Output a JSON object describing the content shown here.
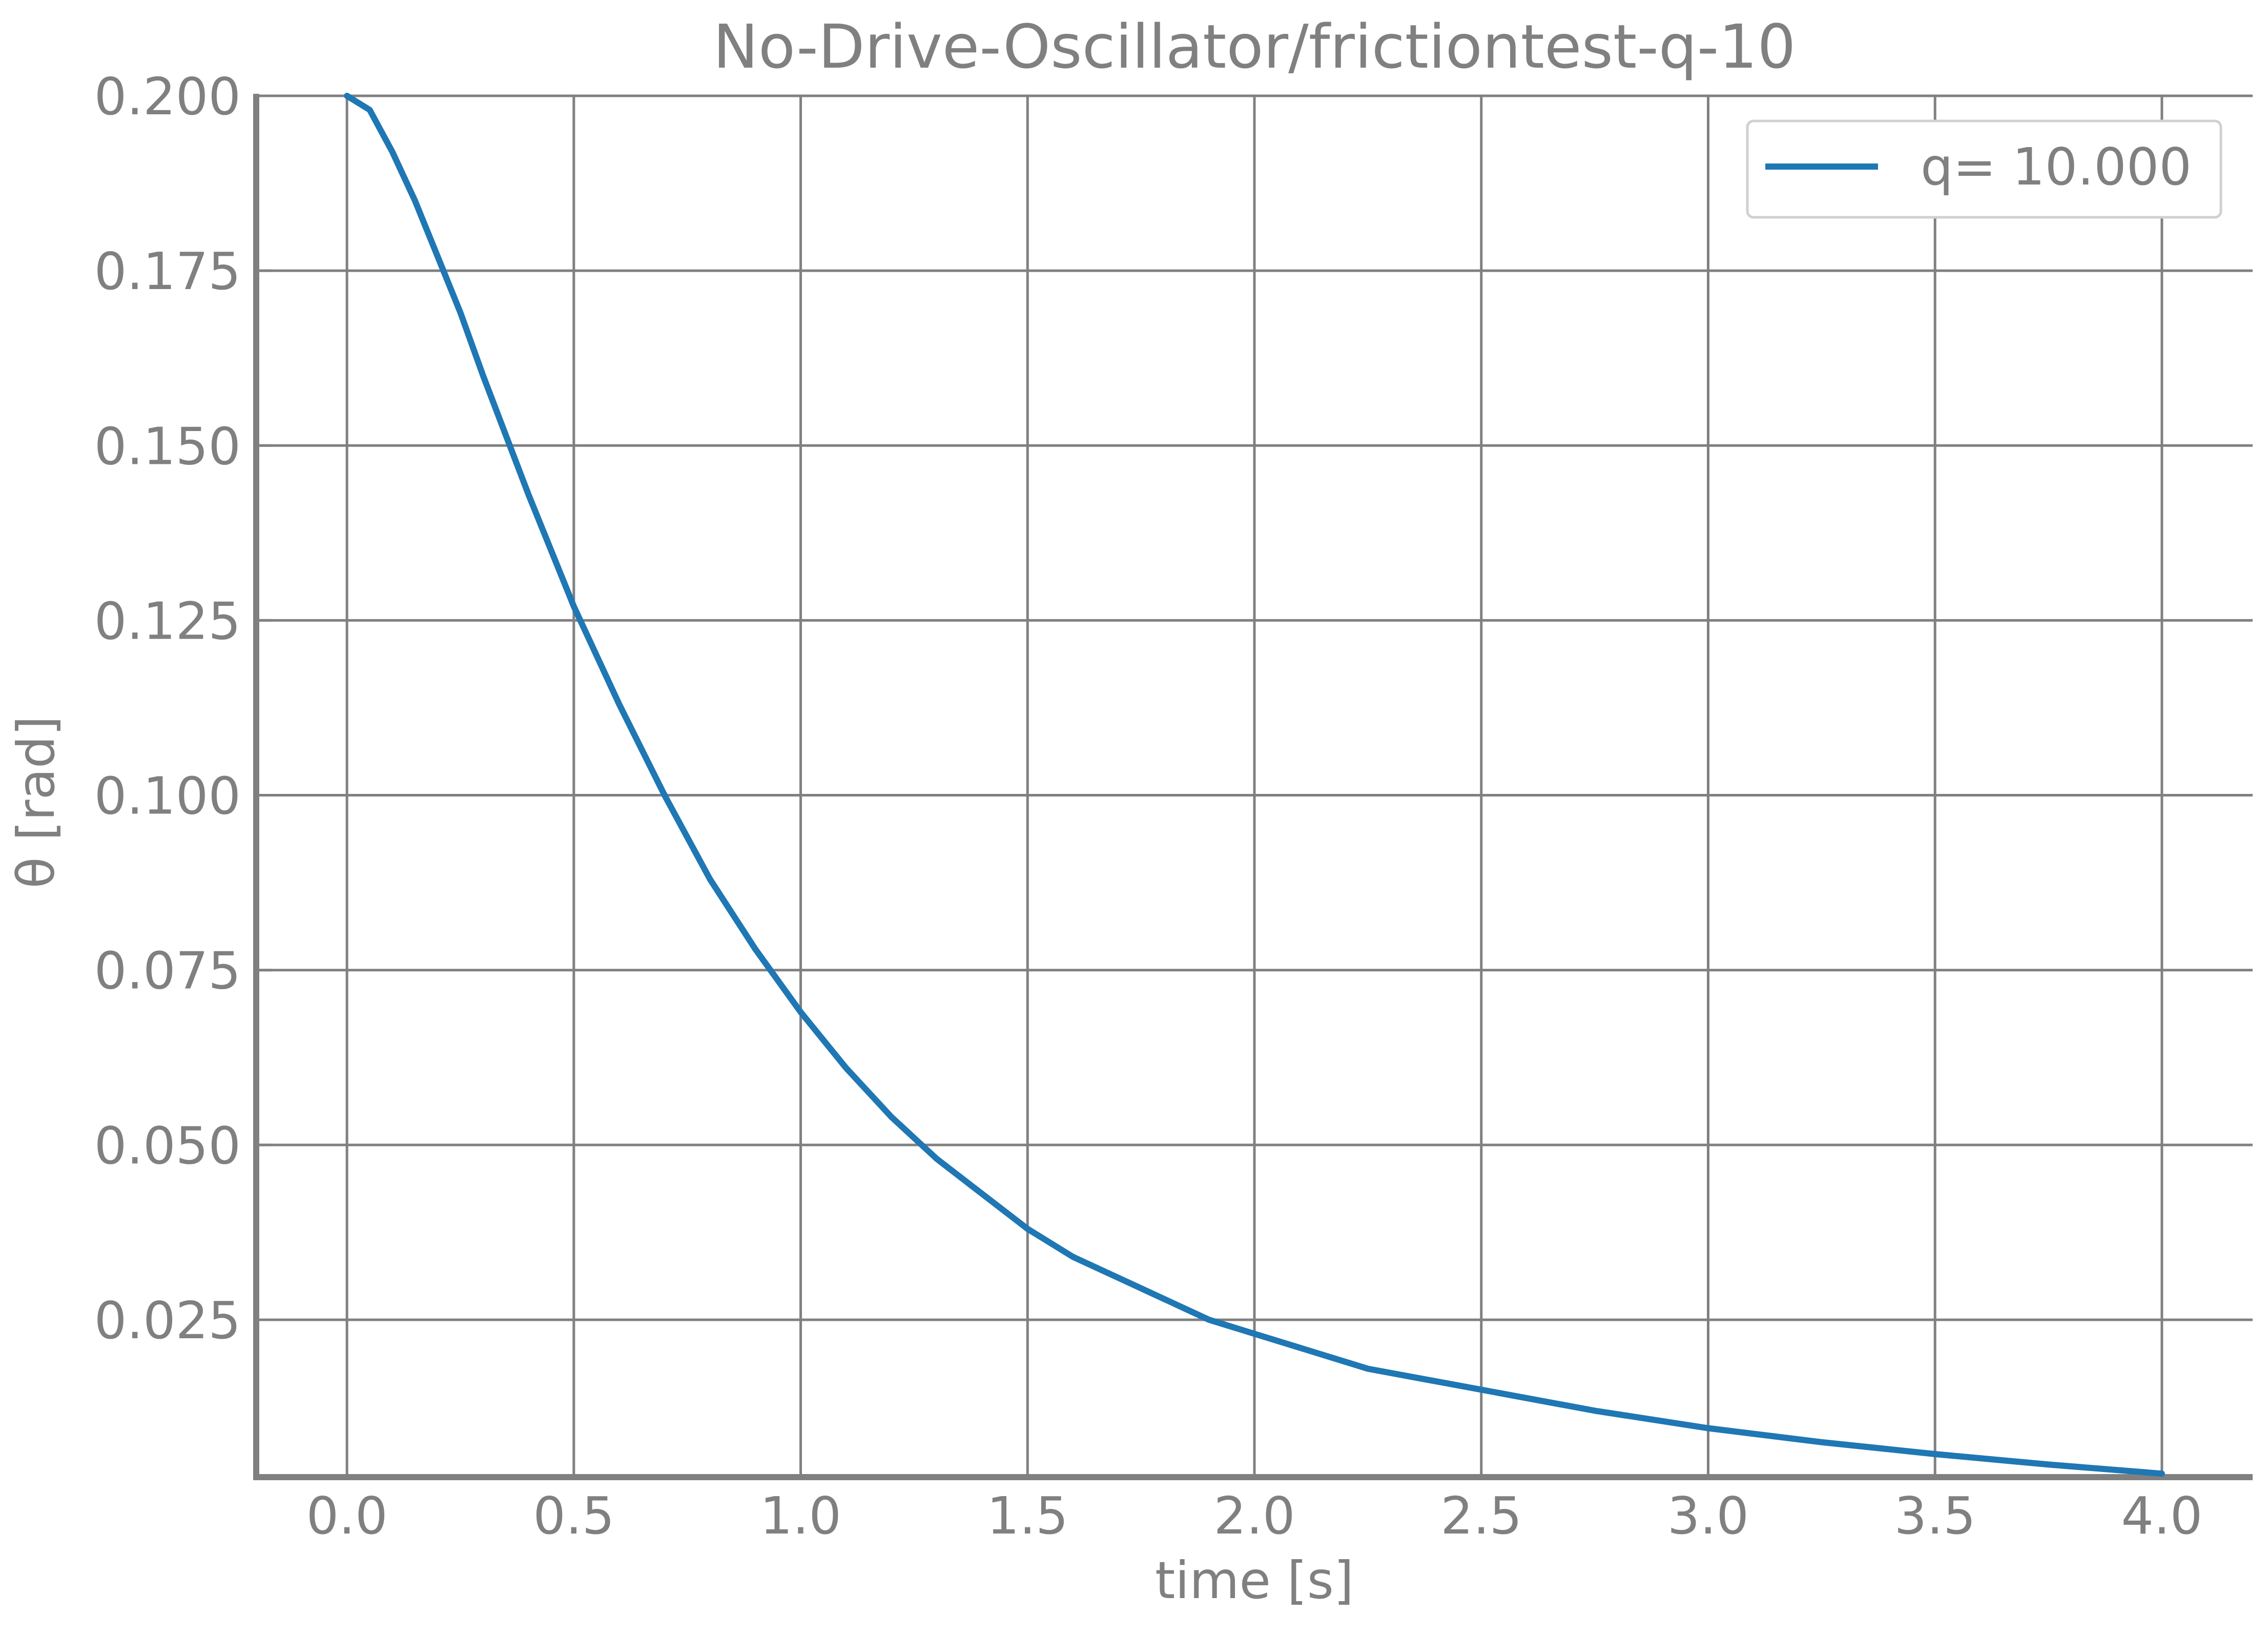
{
  "chart_data": {
    "type": "line",
    "title": "No-Drive-Oscillator/frictiontest-q-10",
    "xlabel": "time [s]",
    "ylabel": "θ [rad]",
    "xlim": [
      -0.2,
      4.2
    ],
    "ylim": [
      0.0025,
      0.2
    ],
    "x_ticks": [
      0.0,
      0.5,
      1.0,
      1.5,
      2.0,
      2.5,
      3.0,
      3.5,
      4.0
    ],
    "x_tick_labels": [
      "0.0",
      "0.5",
      "1.0",
      "1.5",
      "2.0",
      "2.5",
      "3.0",
      "3.5",
      "4.0"
    ],
    "y_ticks": [
      0.025,
      0.05,
      0.075,
      0.1,
      0.125,
      0.15,
      0.175,
      0.2
    ],
    "y_tick_labels": [
      "0.025",
      "0.050",
      "0.075",
      "0.100",
      "0.125",
      "0.150",
      "0.175",
      "0.200"
    ],
    "grid": true,
    "legend_position": "top-right",
    "colors": {
      "series": "#1f77b4",
      "axis": "#808080",
      "grid": "#808080",
      "text": "#808080"
    },
    "series": [
      {
        "name": "q= 10.000",
        "x": [
          0.0,
          0.05,
          0.1,
          0.15,
          0.2,
          0.25,
          0.3,
          0.4,
          0.5,
          0.6,
          0.7,
          0.8,
          0.9,
          1.0,
          1.1,
          1.2,
          1.3,
          1.4,
          1.5,
          1.6,
          1.7,
          1.8,
          1.9,
          2.0,
          2.25,
          2.5,
          2.75,
          3.0,
          3.25,
          3.5,
          3.75,
          4.0
        ],
        "values": [
          0.2,
          0.198,
          0.192,
          0.185,
          0.177,
          0.169,
          0.16,
          0.143,
          0.127,
          0.113,
          0.1,
          0.088,
          0.078,
          0.069,
          0.061,
          0.054,
          0.048,
          0.043,
          0.038,
          0.034,
          0.031,
          0.028,
          0.025,
          0.023,
          0.018,
          0.015,
          0.012,
          0.0095,
          0.0075,
          0.0058,
          0.0043,
          0.003
        ]
      }
    ]
  }
}
